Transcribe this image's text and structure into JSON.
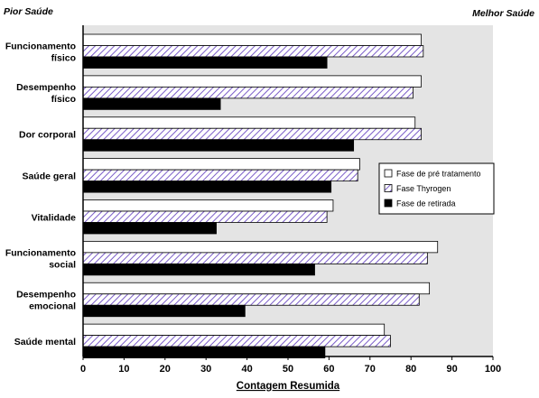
{
  "chart_data": {
    "type": "bar",
    "orientation": "horizontal",
    "title": "",
    "corner_labels": {
      "left": "Pior Saúde",
      "right": "Melhor Saúde"
    },
    "xlabel": "Contagem Resumida",
    "ylabel": "",
    "xlim": [
      0,
      100
    ],
    "x_ticks": [
      "0",
      "10",
      "20",
      "30",
      "40",
      "50",
      "60",
      "70",
      "80",
      "90",
      "100"
    ],
    "grid": false,
    "legend_position": "right",
    "categories": [
      [
        "Funcionamento",
        "físico"
      ],
      [
        "Desempenho",
        "físico"
      ],
      [
        "Dor corporal"
      ],
      [
        "Saúde geral"
      ],
      [
        "Vitalidade"
      ],
      [
        "Funcionamento",
        "social"
      ],
      [
        "Desempenho",
        "emocional"
      ],
      [
        "Saúde mental"
      ]
    ],
    "series": [
      {
        "name": "Fase de pré tratamento",
        "style": "white",
        "values": [
          82.5,
          82.5,
          81,
          67.5,
          61,
          86.5,
          84.5,
          73.5
        ]
      },
      {
        "name": "Fase Thyrogen",
        "style": "hatched-purple",
        "values": [
          83,
          80.5,
          82.5,
          67,
          59.5,
          84,
          82,
          75
        ]
      },
      {
        "name": "Fase de retirada",
        "style": "black",
        "values": [
          59.5,
          33.5,
          66,
          60.5,
          32.5,
          56.5,
          39.5,
          59
        ]
      }
    ]
  },
  "colors": {
    "plot_background": "#e4e4e4",
    "hatch_line": "#7a5cc8",
    "bar_outline": "#000000",
    "solid_bar": "#000000",
    "white_bar": "#ffffff"
  }
}
